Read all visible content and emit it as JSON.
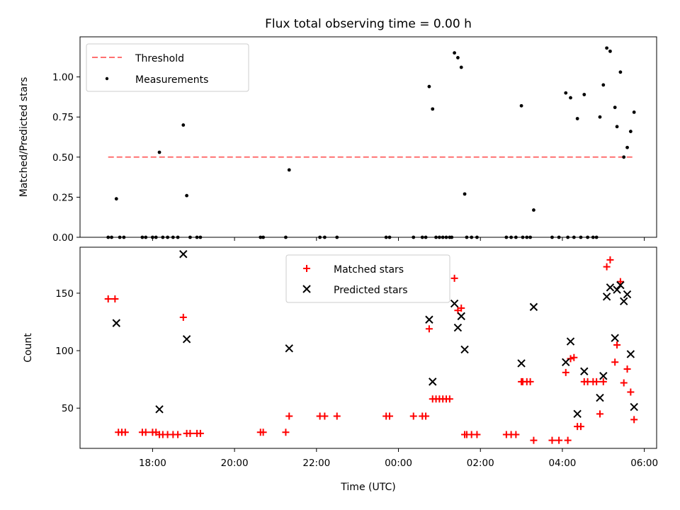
{
  "title": "Flux total observing time = 0.00 h",
  "chart_data": [
    {
      "type": "scatter",
      "ylabel": "Matched/Predicted stars",
      "ylim": [
        0,
        1.25
      ],
      "yticks": [
        "0.00",
        "0.25",
        "0.50",
        "0.75",
        "1.00"
      ],
      "ytick_values": [
        0,
        0.25,
        0.5,
        0.75,
        1.0
      ],
      "legend_position": "top-left",
      "threshold": {
        "name": "Threshold",
        "y": 0.5,
        "x_start": "16:55",
        "x_end": "05:45",
        "color": "#ff7070"
      },
      "series": [
        {
          "name": "Measurements",
          "color": "#000000",
          "marker": "dot",
          "points": [
            [
              "16:55",
              0
            ],
            [
              "17:00",
              0
            ],
            [
              "17:07",
              0.24
            ],
            [
              "17:12",
              0
            ],
            [
              "17:18",
              0
            ],
            [
              "17:45",
              0
            ],
            [
              "17:50",
              0
            ],
            [
              "18:00",
              0
            ],
            [
              "18:05",
              0
            ],
            [
              "18:10",
              0.53
            ],
            [
              "18:15",
              0
            ],
            [
              "18:22",
              0
            ],
            [
              "18:30",
              0
            ],
            [
              "18:37",
              0
            ],
            [
              "18:45",
              0.7
            ],
            [
              "18:50",
              0.26
            ],
            [
              "18:55",
              0
            ],
            [
              "19:05",
              0
            ],
            [
              "19:10",
              0
            ],
            [
              "20:38",
              0
            ],
            [
              "20:42",
              0
            ],
            [
              "21:15",
              0
            ],
            [
              "21:20",
              0.42
            ],
            [
              "22:05",
              0
            ],
            [
              "22:12",
              0
            ],
            [
              "22:30",
              0
            ],
            [
              "23:42",
              0
            ],
            [
              "23:47",
              0
            ],
            [
              "00:22",
              0
            ],
            [
              "00:35",
              0
            ],
            [
              "00:40",
              0
            ],
            [
              "00:45",
              0.94
            ],
            [
              "00:50",
              0.8
            ],
            [
              "00:55",
              0
            ],
            [
              "01:00",
              0
            ],
            [
              "01:05",
              0
            ],
            [
              "01:10",
              0
            ],
            [
              "01:15",
              0
            ],
            [
              "01:18",
              0
            ],
            [
              "01:22",
              1.15
            ],
            [
              "01:27",
              1.12
            ],
            [
              "01:32",
              1.06
            ],
            [
              "01:37",
              0.27
            ],
            [
              "01:40",
              0
            ],
            [
              "01:47",
              0
            ],
            [
              "01:55",
              0
            ],
            [
              "02:38",
              0
            ],
            [
              "02:45",
              0
            ],
            [
              "02:52",
              0
            ],
            [
              "03:00",
              0.82
            ],
            [
              "03:02",
              0
            ],
            [
              "03:08",
              0
            ],
            [
              "03:13",
              0
            ],
            [
              "03:18",
              0.17
            ],
            [
              "03:45",
              0
            ],
            [
              "03:55",
              0
            ],
            [
              "04:05",
              0.9
            ],
            [
              "04:08",
              0
            ],
            [
              "04:12",
              0.87
            ],
            [
              "04:17",
              0
            ],
            [
              "04:22",
              0.74
            ],
            [
              "04:27",
              0
            ],
            [
              "04:32",
              0.89
            ],
            [
              "04:37",
              0
            ],
            [
              "04:45",
              0
            ],
            [
              "04:50",
              0
            ],
            [
              "04:55",
              0.75
            ],
            [
              "05:00",
              0.95
            ],
            [
              "05:05",
              1.18
            ],
            [
              "05:10",
              1.16
            ],
            [
              "05:17",
              0.81
            ],
            [
              "05:20",
              0.69
            ],
            [
              "05:25",
              1.03
            ],
            [
              "05:30",
              0.5
            ],
            [
              "05:35",
              0.56
            ],
            [
              "05:40",
              0.66
            ],
            [
              "05:45",
              0.78
            ]
          ]
        }
      ]
    },
    {
      "type": "scatter",
      "xlabel": "Time (UTC)",
      "ylabel": "Count",
      "xticks": [
        "18:00",
        "20:00",
        "22:00",
        "00:00",
        "02:00",
        "04:00",
        "06:00"
      ],
      "ylim": [
        15,
        190
      ],
      "yticks": [
        "50",
        "100",
        "150"
      ],
      "ytick_values": [
        50,
        100,
        150
      ],
      "legend_position": "top-center",
      "series": [
        {
          "name": "Matched stars",
          "color": "#ff0000",
          "marker": "plus",
          "points": [
            [
              "16:55",
              145
            ],
            [
              "17:05",
              145
            ],
            [
              "17:10",
              29
            ],
            [
              "17:15",
              29
            ],
            [
              "17:20",
              29
            ],
            [
              "17:45",
              29
            ],
            [
              "17:50",
              29
            ],
            [
              "18:00",
              29
            ],
            [
              "18:05",
              29
            ],
            [
              "18:10",
              27
            ],
            [
              "18:15",
              27
            ],
            [
              "18:22",
              27
            ],
            [
              "18:30",
              27
            ],
            [
              "18:37",
              27
            ],
            [
              "18:45",
              129
            ],
            [
              "18:50",
              28
            ],
            [
              "18:55",
              28
            ],
            [
              "19:05",
              28
            ],
            [
              "19:10",
              28
            ],
            [
              "20:38",
              29
            ],
            [
              "20:42",
              29
            ],
            [
              "21:15",
              29
            ],
            [
              "21:20",
              43
            ],
            [
              "22:05",
              43
            ],
            [
              "22:12",
              43
            ],
            [
              "22:30",
              43
            ],
            [
              "23:42",
              43
            ],
            [
              "23:47",
              43
            ],
            [
              "00:22",
              43
            ],
            [
              "00:35",
              43
            ],
            [
              "00:40",
              43
            ],
            [
              "00:45",
              119
            ],
            [
              "00:50",
              58
            ],
            [
              "00:55",
              58
            ],
            [
              "01:00",
              58
            ],
            [
              "01:05",
              58
            ],
            [
              "01:10",
              58
            ],
            [
              "01:15",
              58
            ],
            [
              "01:22",
              163
            ],
            [
              "01:27",
              135
            ],
            [
              "01:32",
              137
            ],
            [
              "01:37",
              27
            ],
            [
              "01:40",
              27
            ],
            [
              "01:47",
              27
            ],
            [
              "01:55",
              27
            ],
            [
              "02:38",
              27
            ],
            [
              "02:45",
              27
            ],
            [
              "02:52",
              27
            ],
            [
              "03:00",
              73
            ],
            [
              "03:02",
              73
            ],
            [
              "03:08",
              73
            ],
            [
              "03:13",
              73
            ],
            [
              "03:18",
              22
            ],
            [
              "03:45",
              22
            ],
            [
              "03:55",
              22
            ],
            [
              "04:05",
              81
            ],
            [
              "04:08",
              22
            ],
            [
              "04:12",
              93
            ],
            [
              "04:17",
              94
            ],
            [
              "04:22",
              34
            ],
            [
              "04:27",
              34
            ],
            [
              "04:32",
              73
            ],
            [
              "04:37",
              73
            ],
            [
              "04:45",
              73
            ],
            [
              "04:50",
              73
            ],
            [
              "04:55",
              45
            ],
            [
              "05:00",
              73
            ],
            [
              "05:05",
              173
            ],
            [
              "05:10",
              179
            ],
            [
              "05:17",
              90
            ],
            [
              "05:20",
              105
            ],
            [
              "05:25",
              160
            ],
            [
              "05:30",
              72
            ],
            [
              "05:35",
              84
            ],
            [
              "05:40",
              64
            ],
            [
              "05:45",
              40
            ]
          ]
        },
        {
          "name": "Predicted stars",
          "color": "#000000",
          "marker": "x",
          "points": [
            [
              "17:07",
              124
            ],
            [
              "18:10",
              49
            ],
            [
              "18:45",
              184
            ],
            [
              "18:50",
              110
            ],
            [
              "21:20",
              102
            ],
            [
              "00:45",
              127
            ],
            [
              "00:50",
              73
            ],
            [
              "01:22",
              141
            ],
            [
              "01:27",
              120
            ],
            [
              "01:32",
              130
            ],
            [
              "01:37",
              101
            ],
            [
              "03:00",
              89
            ],
            [
              "03:18",
              138
            ],
            [
              "04:05",
              90
            ],
            [
              "04:12",
              108
            ],
            [
              "04:22",
              45
            ],
            [
              "04:32",
              82
            ],
            [
              "04:55",
              59
            ],
            [
              "05:00",
              78
            ],
            [
              "05:05",
              147
            ],
            [
              "05:10",
              155
            ],
            [
              "05:17",
              111
            ],
            [
              "05:20",
              153
            ],
            [
              "05:25",
              157
            ],
            [
              "05:30",
              143
            ],
            [
              "05:35",
              149
            ],
            [
              "05:40",
              97
            ],
            [
              "05:45",
              51
            ]
          ]
        }
      ]
    }
  ]
}
